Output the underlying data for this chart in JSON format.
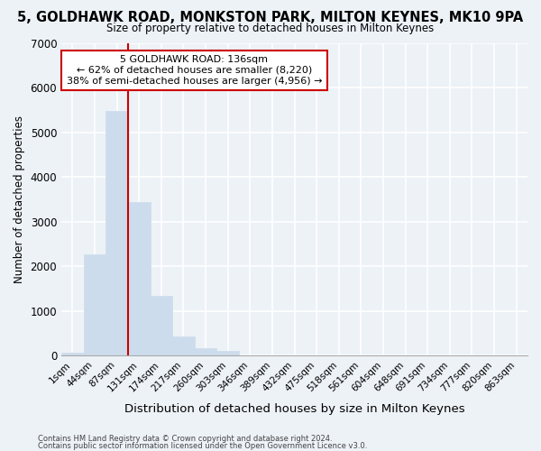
{
  "title": "5, GOLDHAWK ROAD, MONKSTON PARK, MILTON KEYNES, MK10 9PA",
  "subtitle": "Size of property relative to detached houses in Milton Keynes",
  "xlabel": "Distribution of detached houses by size in Milton Keynes",
  "ylabel": "Number of detached properties",
  "bar_color": "#ccdcec",
  "bar_edge_color": "#ccdcec",
  "categories": [
    "1sqm",
    "44sqm",
    "87sqm",
    "131sqm",
    "174sqm",
    "217sqm",
    "260sqm",
    "303sqm",
    "346sqm",
    "389sqm",
    "432sqm",
    "475sqm",
    "518sqm",
    "561sqm",
    "604sqm",
    "648sqm",
    "691sqm",
    "734sqm",
    "777sqm",
    "820sqm",
    "863sqm"
  ],
  "values": [
    70,
    2270,
    5470,
    3430,
    1340,
    430,
    175,
    95,
    0,
    0,
    0,
    0,
    0,
    0,
    0,
    0,
    0,
    0,
    0,
    0,
    0
  ],
  "vline_x_idx": 3,
  "vline_color": "#cc0000",
  "annotation_text": "5 GOLDHAWK ROAD: 136sqm\n← 62% of detached houses are smaller (8,220)\n38% of semi-detached houses are larger (4,956) →",
  "annotation_box_color": "#ffffff",
  "annotation_box_edge": "#cc0000",
  "ylim": [
    0,
    7000
  ],
  "yticks": [
    0,
    1000,
    2000,
    3000,
    4000,
    5000,
    6000,
    7000
  ],
  "footer1": "Contains HM Land Registry data © Crown copyright and database right 2024.",
  "footer2": "Contains public sector information licensed under the Open Government Licence v3.0.",
  "background_color": "#edf2f7",
  "grid_color": "#ffffff",
  "title_fontsize": 11,
  "subtitle_fontsize": 9
}
